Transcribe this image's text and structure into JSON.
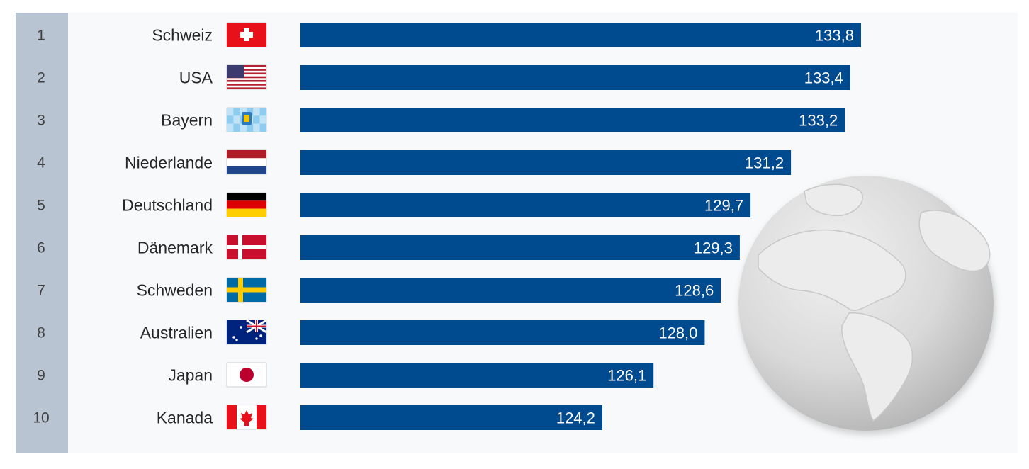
{
  "chart_data": {
    "type": "bar",
    "orientation": "horizontal",
    "title": "",
    "xlabel": "",
    "ylabel": "",
    "grid": false,
    "legend": "none",
    "xlim": [
      113,
      134.5
    ],
    "ranks": [
      "1",
      "2",
      "3",
      "4",
      "5",
      "6",
      "7",
      "8",
      "9",
      "10"
    ],
    "categories": [
      "Schweiz",
      "USA",
      "Bayern",
      "Niederlande",
      "Deutschland",
      "Dänemark",
      "Schweden",
      "Australien",
      "Japan",
      "Kanada"
    ],
    "values": [
      133.8,
      133.4,
      133.2,
      131.2,
      129.7,
      129.3,
      128.6,
      128.0,
      126.1,
      124.2
    ],
    "value_labels": [
      "133,8",
      "133,4",
      "133,2",
      "131,2",
      "129,7",
      "129,3",
      "128,6",
      "128,0",
      "126,1",
      "124,2"
    ],
    "flags": [
      "flag-switzerland",
      "flag-usa",
      "flag-bavaria",
      "flag-netherlands",
      "flag-germany",
      "flag-denmark",
      "flag-sweden",
      "flag-australia",
      "flag-japan",
      "flag-canada"
    ],
    "bar_color": "#004a8f",
    "decoration": "globe-icon"
  }
}
